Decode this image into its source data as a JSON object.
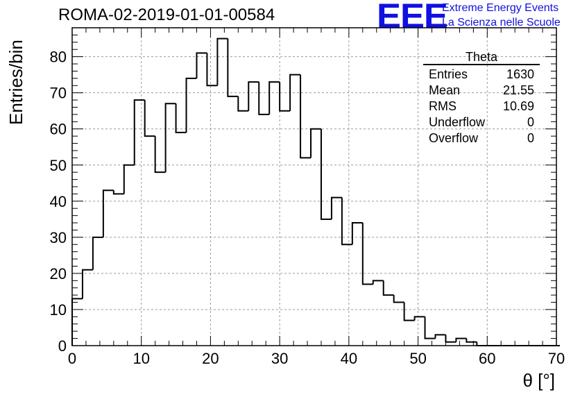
{
  "title": "ROMA-02-2019-01-01-00584",
  "logo": {
    "text": "EEE",
    "line1": "Extreme Energy Events",
    "line2": "La Scienza nelle Scuole",
    "color": "#1010e0"
  },
  "stats": {
    "name": "Theta",
    "rows": [
      {
        "label": "Entries",
        "value": "1630"
      },
      {
        "label": "Mean",
        "value": "21.55"
      },
      {
        "label": "RMS",
        "value": "10.69"
      },
      {
        "label": "Underflow",
        "value": "0"
      },
      {
        "label": "Overflow",
        "value": "0"
      }
    ]
  },
  "chart_data": {
    "type": "bar",
    "title": "ROMA-02-2019-01-01-00584",
    "xlabel": "θ [°]",
    "ylabel": "Entries/bin",
    "xlim": [
      0,
      70
    ],
    "ylim": [
      0,
      88
    ],
    "bin_width": 1.5,
    "bin_start": 0,
    "values": [
      13,
      21,
      30,
      43,
      42,
      50,
      68,
      58,
      48,
      67,
      59,
      74,
      81,
      72,
      85,
      69,
      65,
      73,
      64,
      73,
      65,
      75,
      52,
      60,
      35,
      41,
      28,
      34,
      17,
      18,
      14,
      12,
      7,
      8,
      2,
      3,
      1,
      2,
      1,
      0,
      0,
      0,
      0,
      0,
      0,
      0,
      0
    ],
    "x_ticks": [
      "0",
      "10",
      "20",
      "30",
      "40",
      "50",
      "60",
      "70"
    ],
    "y_ticks": [
      "0",
      "10",
      "20",
      "30",
      "40",
      "50",
      "60",
      "70",
      "80"
    ],
    "grid": true,
    "line_color": "#000000"
  }
}
